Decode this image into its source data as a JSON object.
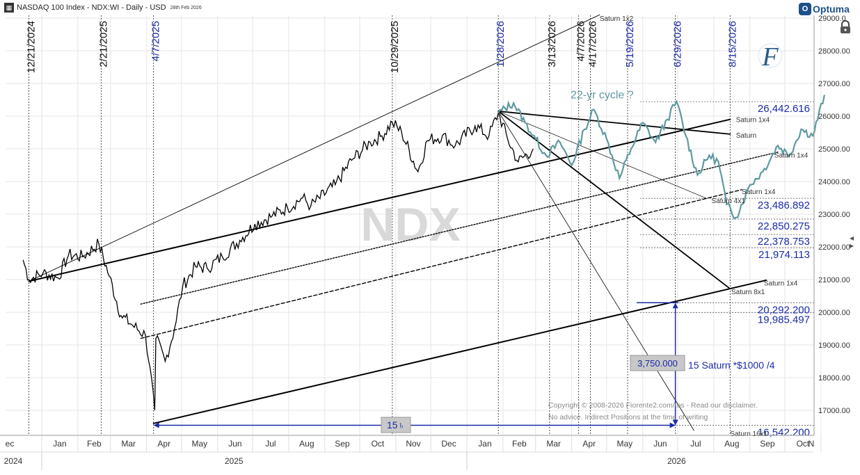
{
  "header": {
    "icon": "chart-icon",
    "title": "NASDAQ 100 Index - NDX:WI - Daily - USD",
    "date_stamp": "28th Feb 2026"
  },
  "brand": {
    "name": "Optuma",
    "badge": "O"
  },
  "watermark": "NDX",
  "chart_data": {
    "type": "line",
    "y_axis": {
      "range": [
        16500,
        29200
      ],
      "ticks": [
        "17000.00",
        "18000.00",
        "19000.00",
        "20000.00",
        "21000.00",
        "22000.00",
        "23000.00",
        "24000.00",
        "25000.00",
        "26000.00",
        "27000.00",
        "28000.00",
        "29000.0"
      ]
    },
    "x_axis": {
      "months": [
        "ec",
        "Jan",
        "Feb",
        "Mar",
        "Apr",
        "May",
        "Jun",
        "Jul",
        "Aug",
        "Sep",
        "Oct",
        "Nov",
        "Dec",
        "Jan",
        "Feb",
        "Mar",
        "Apr",
        "May",
        "Jun",
        "Jul",
        "Aug",
        "Sep",
        "Oct",
        "N"
      ],
      "years": [
        {
          "label": "2024",
          "at": "2024-12-20"
        },
        {
          "label": "2025",
          "at": "2025-06-15"
        },
        {
          "label": "2026",
          "at": "2026-06-30"
        }
      ],
      "start": "2024-12-15",
      "end": "2026-11-05"
    },
    "date_lines": [
      {
        "label": "12/21/2024",
        "date": "2024-12-21",
        "color": "#111"
      },
      {
        "label": "2/21/2025",
        "date": "2025-02-21",
        "color": "#111"
      },
      {
        "label": "4/7/2025",
        "date": "2025-04-07",
        "color": "#1a2aa8"
      },
      {
        "label": "10/29/2025",
        "date": "2025-10-29",
        "color": "#111"
      },
      {
        "label": "1/28/2026",
        "date": "2026-01-28",
        "color": "#1a2aa8"
      },
      {
        "label": "3/13/2026",
        "date": "2026-03-13",
        "color": "#111"
      },
      {
        "label": "4/7/2026",
        "date": "2026-04-07",
        "color": "#111"
      },
      {
        "label": "4/17/2026",
        "date": "2026-04-17",
        "color": "#111"
      },
      {
        "label": "5/19/2026",
        "date": "2026-05-19",
        "color": "#1a2aa8"
      },
      {
        "label": "6/29/2026",
        "date": "2026-06-29",
        "color": "#1a2aa8"
      },
      {
        "label": "8/15/2026",
        "date": "2026-08-15",
        "color": "#1a2aa8"
      }
    ],
    "price_series": {
      "name": "",
      "x": [
        "2024-12-16",
        "2024-12-21",
        "2025-01-02",
        "2025-01-15",
        "2025-01-24",
        "2025-02-05",
        "2025-02-19",
        "2025-02-28",
        "2025-03-10",
        "2025-03-20",
        "2025-03-31",
        "2025-04-04",
        "2025-04-08",
        "2025-04-09",
        "2025-04-17",
        "2025-04-25",
        "2025-05-02",
        "2025-05-13",
        "2025-05-23",
        "2025-06-05",
        "2025-06-20",
        "2025-07-03",
        "2025-07-18",
        "2025-07-31",
        "2025-08-13",
        "2025-08-20",
        "2025-09-10",
        "2025-09-24",
        "2025-10-10",
        "2025-10-20",
        "2025-10-29",
        "2025-11-06",
        "2025-11-20",
        "2025-11-28",
        "2025-12-11",
        "2025-12-22",
        "2026-01-08",
        "2026-01-20",
        "2026-01-28",
        "2026-02-05",
        "2026-02-14",
        "2026-02-27"
      ],
      "values": [
        21600,
        21000,
        21200,
        21050,
        21750,
        21700,
        22100,
        21100,
        19900,
        19600,
        19300,
        18300,
        17000,
        19200,
        18500,
        19500,
        20800,
        21400,
        21350,
        21700,
        22200,
        22700,
        22950,
        23200,
        23500,
        23250,
        23900,
        24650,
        25200,
        25400,
        25800,
        25500,
        24300,
        25250,
        25400,
        25100,
        25700,
        25400,
        26100,
        25300,
        24600,
        25000
      ]
    },
    "cycle_series": {
      "name": "22-yr cycle ?",
      "color": "#5e9aa0",
      "x": [
        "2026-01-28",
        "2026-02-10",
        "2026-02-20",
        "2026-03-01",
        "2026-03-10",
        "2026-03-22",
        "2026-04-01",
        "2026-04-12",
        "2026-04-20",
        "2026-05-01",
        "2026-05-12",
        "2026-05-22",
        "2026-06-01",
        "2026-06-12",
        "2026-06-22",
        "2026-06-30",
        "2026-07-08",
        "2026-07-18",
        "2026-07-28",
        "2026-08-05",
        "2026-08-12",
        "2026-08-20",
        "2026-09-01",
        "2026-09-12",
        "2026-09-25",
        "2026-10-05",
        "2026-10-15",
        "2026-10-25",
        "2026-11-04"
      ],
      "values": [
        26100,
        26400,
        25800,
        25300,
        24800,
        25200,
        24500,
        25600,
        26200,
        25300,
        24100,
        25000,
        25800,
        25200,
        25900,
        26450,
        25400,
        24200,
        24800,
        24600,
        23300,
        22900,
        23900,
        24300,
        25100,
        24800,
        25600,
        25400,
        26650
      ]
    },
    "trend_lines": [
      {
        "label": "Saturn 1x2",
        "from": [
          "2024-12-21",
          20950
        ],
        "to": [
          "2026-04-25",
          29100
        ],
        "width": 0.9
      },
      {
        "label": "",
        "from": [
          "2024-12-21",
          20950
        ],
        "to": [
          "2026-08-15",
          25900
        ],
        "width": 2
      },
      {
        "label": "Saturn 1x4",
        "from": [
          "2026-08-15",
          25900
        ],
        "to": [
          "2026-08-15",
          25900
        ],
        "width": 2
      },
      {
        "label": "Saturn",
        "from": [
          "2026-01-28",
          26150
        ],
        "to": [
          "2026-08-15",
          25450
        ],
        "width": 1.8
      },
      {
        "label": "Saturn 1x4",
        "from": [
          "2025-03-27",
          20250
        ],
        "to": [
          "2026-09-25",
          24900
        ],
        "width": 1.4,
        "dash": "2,2"
      },
      {
        "label": "Saturn 1x4",
        "from": [
          "2025-03-27",
          19200
        ],
        "to": [
          "2026-08-25",
          23750
        ],
        "width": 1.4,
        "dash": "5,3"
      },
      {
        "label": "Saturn 4x1",
        "from": [
          "2026-01-28",
          26150
        ],
        "to": [
          "2026-07-26",
          23480
        ],
        "width": 0.7
      },
      {
        "label": "Saturn 8x1",
        "from": [
          "2026-01-28",
          26150
        ],
        "to": [
          "2026-08-15",
          20720
        ],
        "width": 1.8
      },
      {
        "label": "Saturn 1x4",
        "from": [
          "2025-04-07",
          16600
        ],
        "to": [
          "2026-09-15",
          20980
        ],
        "width": 2
      },
      {
        "label": "Saturn 16x1",
        "from": [
          "2026-01-28",
          26150
        ],
        "to": [
          "2026-07-15",
          16380
        ],
        "width": 0.8
      }
    ],
    "line_labels": [
      {
        "text": "Saturn 1x2",
        "at": [
          "2026-04-25",
          29000
        ]
      },
      {
        "text": "Saturn 1x4",
        "at": [
          "2026-08-20",
          25900
        ]
      },
      {
        "text": "Saturn",
        "at": [
          "2026-08-20",
          25430
        ]
      },
      {
        "text": "Saturn 1x4",
        "at": [
          "2026-09-22",
          24820
        ]
      },
      {
        "text": "Saturn 1x4",
        "at": [
          "2026-08-25",
          23700
        ]
      },
      {
        "text": "Saturn 4x1",
        "at": [
          "2026-07-30",
          23430
        ]
      },
      {
        "text": "Saturn 1x4",
        "at": [
          "2026-09-13",
          20900
        ]
      },
      {
        "text": "Saturn 8x1",
        "at": [
          "2026-08-16",
          20640
        ]
      },
      {
        "text": "Saturn 16x1",
        "at": [
          "2026-08-15",
          16300
        ]
      }
    ],
    "price_levels": [
      {
        "label": "26,442.616",
        "value": 26442.616
      },
      {
        "label": "23,486.892",
        "value": 23486.892
      },
      {
        "label": "22,850.275",
        "value": 22850.275
      },
      {
        "label": "22,378.753",
        "value": 22378.753
      },
      {
        "label": "21,974.113",
        "value": 21974.113
      },
      {
        "label": "20,292.200",
        "value": 20292.2
      },
      {
        "label": "19,985.497",
        "value": 19985.497
      },
      {
        "label": "16,542.200",
        "value": 16542.2
      }
    ],
    "measure": {
      "vertical": {
        "label": "3,750.000",
        "note": "15 Saturn *$1000 /4",
        "from": 16542.2,
        "to": 20292.2,
        "date": "2026-06-29"
      },
      "horizontal": {
        "label": "15♄",
        "from": "2025-04-07",
        "to": "2026-06-29",
        "value": 16542.2
      }
    },
    "annotations": [
      {
        "text": "22-yr cycle ?",
        "at": [
          "2026-03-31",
          26650
        ]
      }
    ]
  },
  "copyright": {
    "line1": "Copyright © 2008-2026 Fiorente2.com/tos -  Read our disclaimer.",
    "line2": "No advice. Indirect Positions at the time of writing"
  },
  "colors": {
    "blue": "#1a2aa8",
    "teal": "#5e9aa0",
    "grid": "#e6e6e6",
    "price": "#000000"
  }
}
